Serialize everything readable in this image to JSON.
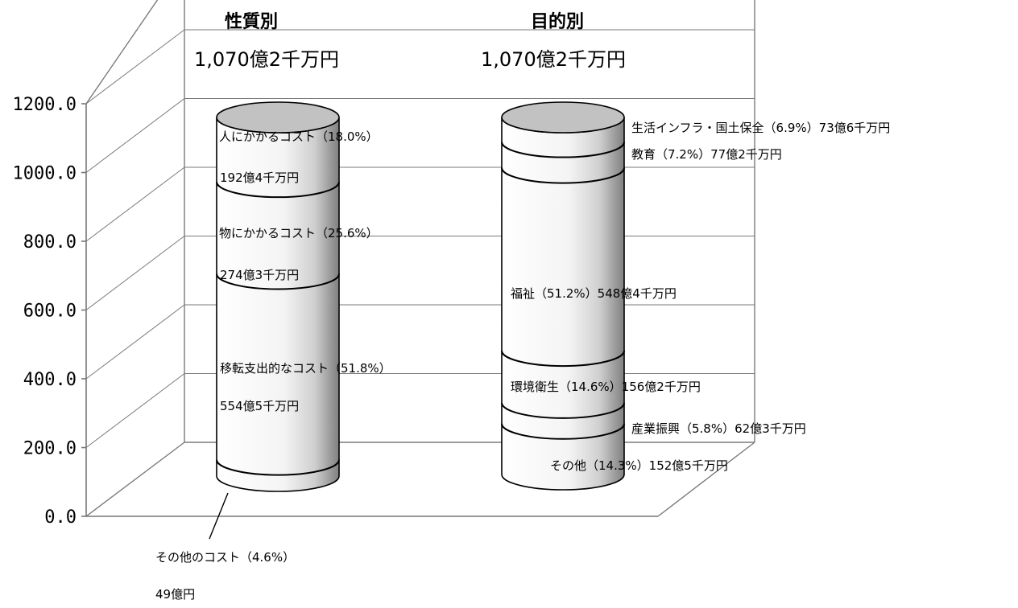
{
  "chart_data": {
    "type": "bar",
    "ylim": [
      0,
      1200
    ],
    "yticks": [
      "0.0",
      "200.0",
      "400.0",
      "600.0",
      "800.0",
      "1000.0",
      "1200.0"
    ],
    "grid": true,
    "stacks": [
      {
        "title": "性質別",
        "total": "1,070億2千万円",
        "segments": [
          {
            "label": "その他のコスト（4.6%）",
            "amount": "49億円",
            "value": 49.0
          },
          {
            "label": "移転支出的なコスト（51.8%）",
            "amount": "554億5千万円",
            "value": 554.5
          },
          {
            "label": "物にかかるコスト（25.6%）",
            "amount": "274億3千万円",
            "value": 274.3
          },
          {
            "label": "人にかかるコスト（18.0%）",
            "amount": "192億4千万円",
            "value": 192.4
          }
        ]
      },
      {
        "title": "目的別",
        "total": "1,070億2千万円",
        "segments": [
          {
            "label": "その他（14.3%）152億5千万円",
            "value": 152.5
          },
          {
            "label": "産業振興（5.8%）62億3千万円",
            "value": 62.3
          },
          {
            "label": "環境衛生（14.6%）156億2千万円",
            "value": 156.2
          },
          {
            "label": "福祉（51.2%）548億4千万円",
            "value": 548.4
          },
          {
            "label": "教育（7.2%）77億2千万円",
            "value": 77.2
          },
          {
            "label": "生活インフラ・国土保全（6.9%）73億6千万円",
            "value": 73.6
          }
        ]
      }
    ]
  },
  "colors": {
    "cylinder_top": "#c2c2c2",
    "grid": "#7a7a7a"
  }
}
